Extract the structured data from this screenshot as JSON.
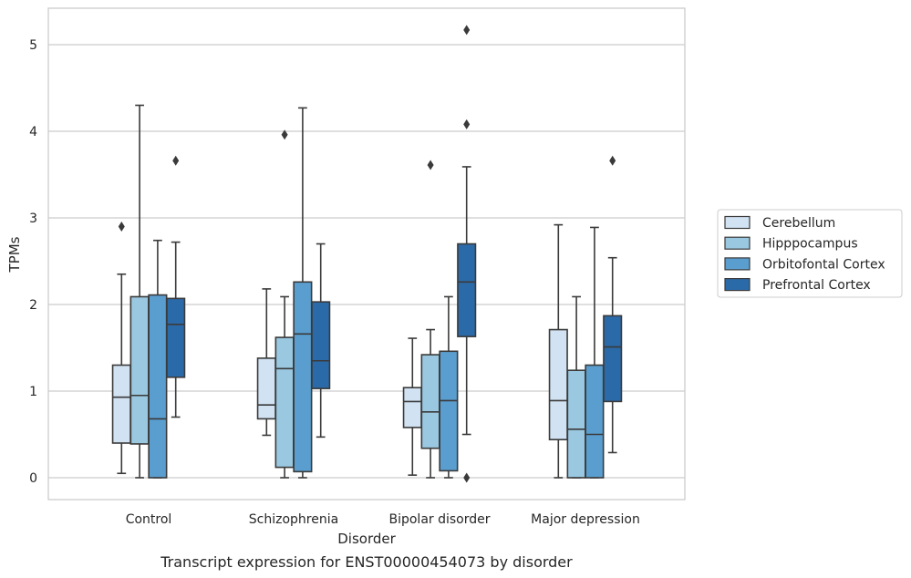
{
  "chart_data": {
    "type": "box",
    "xlabel": "Disorder",
    "ylabel": "TPMs",
    "caption": "Transcript expression for ENST00000454073 by disorder",
    "ylim": [
      -0.25,
      5.4
    ],
    "yticks": [
      0,
      1,
      2,
      3,
      4,
      5
    ],
    "grid": "horizontal",
    "legend_position": "right",
    "categories": [
      "Control",
      "Schizophrenia",
      "Bipolar disorder",
      "Major depression"
    ],
    "series": [
      {
        "name": "Cerebellum",
        "color": "#d1e2f2",
        "boxes": [
          {
            "whislo": 0.05,
            "q1": 0.4,
            "med": 0.93,
            "q3": 1.3,
            "whishi": 2.35,
            "fliers": [
              2.9
            ]
          },
          {
            "whislo": 0.49,
            "q1": 0.68,
            "med": 0.84,
            "q3": 1.38,
            "whishi": 2.18,
            "fliers": []
          },
          {
            "whislo": 0.03,
            "q1": 0.58,
            "med": 0.88,
            "q3": 1.04,
            "whishi": 1.61,
            "fliers": []
          },
          {
            "whislo": 0.0,
            "q1": 0.44,
            "med": 0.89,
            "q3": 1.71,
            "whishi": 2.92,
            "fliers": []
          }
        ]
      },
      {
        "name": "Hipppocampus",
        "color": "#9ac8e0",
        "boxes": [
          {
            "whislo": 0.0,
            "q1": 0.39,
            "med": 0.95,
            "q3": 2.09,
            "whishi": 4.3,
            "fliers": []
          },
          {
            "whislo": 0.0,
            "q1": 0.12,
            "med": 1.26,
            "q3": 1.62,
            "whishi": 2.09,
            "fliers": [
              3.96
            ]
          },
          {
            "whislo": 0.0,
            "q1": 0.34,
            "med": 0.76,
            "q3": 1.42,
            "whishi": 1.71,
            "fliers": [
              3.61
            ]
          },
          {
            "whislo": 0.0,
            "q1": 0.0,
            "med": 0.56,
            "q3": 1.24,
            "whishi": 2.09,
            "fliers": []
          }
        ]
      },
      {
        "name": "Orbitofontal Cortex",
        "color": "#5a9ecf",
        "boxes": [
          {
            "whislo": 0.0,
            "q1": 0.0,
            "med": 0.68,
            "q3": 2.11,
            "whishi": 2.74,
            "fliers": []
          },
          {
            "whislo": 0.0,
            "q1": 0.07,
            "med": 1.66,
            "q3": 2.26,
            "whishi": 4.27,
            "fliers": []
          },
          {
            "whislo": 0.0,
            "q1": 0.08,
            "med": 0.89,
            "q3": 1.46,
            "whishi": 2.09,
            "fliers": []
          },
          {
            "whislo": 0.0,
            "q1": 0.0,
            "med": 0.5,
            "q3": 1.3,
            "whishi": 2.89,
            "fliers": []
          }
        ]
      },
      {
        "name": "Prefrontal Cortex",
        "color": "#2b6aa8",
        "boxes": [
          {
            "whislo": 0.7,
            "q1": 1.16,
            "med": 1.77,
            "q3": 2.07,
            "whishi": 2.72,
            "fliers": [
              3.66
            ]
          },
          {
            "whislo": 0.47,
            "q1": 1.03,
            "med": 1.35,
            "q3": 2.03,
            "whishi": 2.7,
            "fliers": []
          },
          {
            "whislo": 0.5,
            "q1": 1.63,
            "med": 2.26,
            "q3": 2.7,
            "whishi": 3.59,
            "fliers": [
              0.0,
              4.08,
              5.17
            ]
          },
          {
            "whislo": 0.29,
            "q1": 0.88,
            "med": 1.51,
            "q3": 1.87,
            "whishi": 2.54,
            "fliers": [
              3.66
            ]
          }
        ]
      }
    ]
  }
}
